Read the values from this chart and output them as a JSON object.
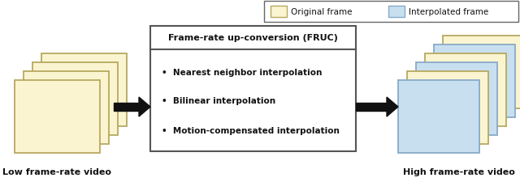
{
  "bg_color": "#ffffff",
  "original_frame_color": "#faf5d0",
  "original_frame_edge": "#b8a860",
  "interpolated_frame_color": "#c8dff0",
  "interpolated_frame_edge": "#88aac8",
  "box_fill": "#ffffff",
  "box_edge": "#555555",
  "arrow_color": "#111111",
  "low_label": "Low frame-rate video",
  "high_label": "High frame-rate video",
  "box_title": "Frame-rate up-conversion (FRUC)",
  "bullet1": "•  Nearest neighbor interpolation",
  "bullet2": "•  Bilinear interpolation",
  "bullet3": "•  Motion-compensated interpolation",
  "legend_original": "Original frame",
  "legend_interpolated": "Interpolated frame"
}
